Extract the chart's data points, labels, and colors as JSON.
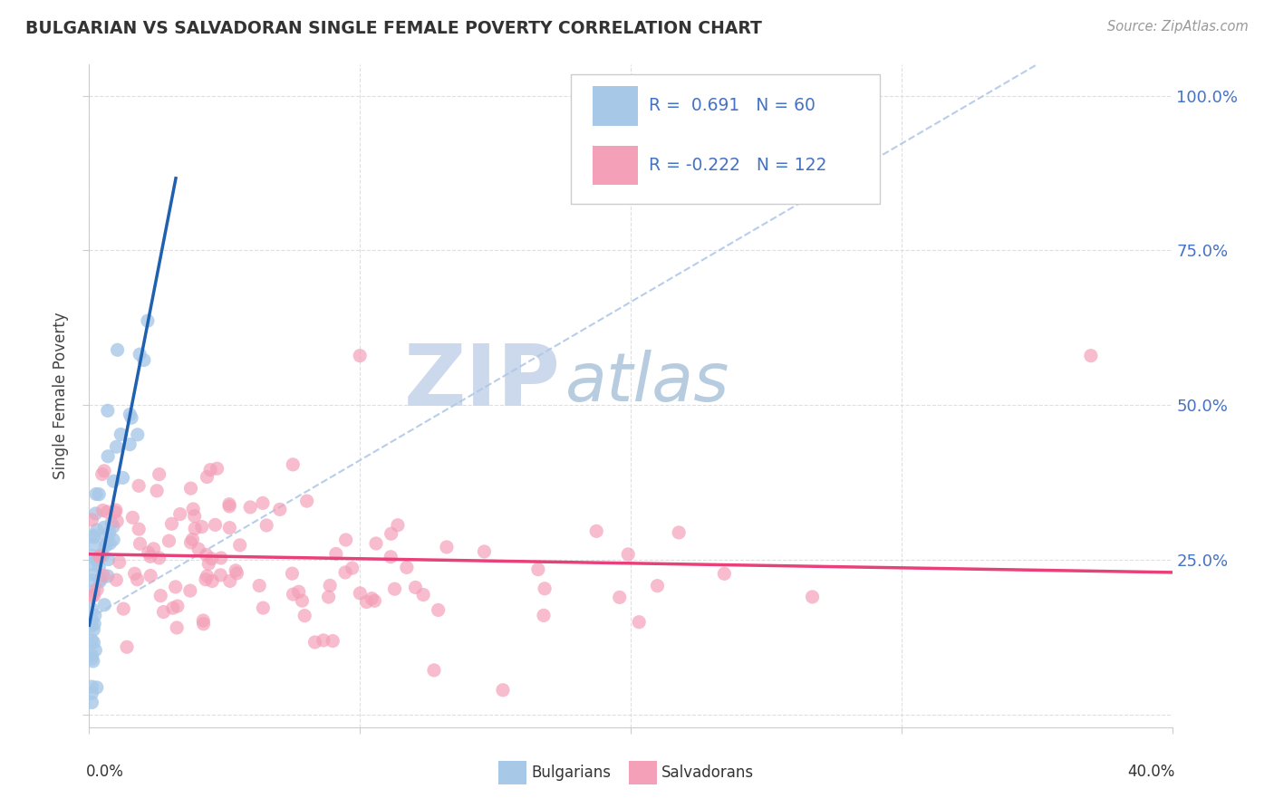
{
  "title": "BULGARIAN VS SALVADORAN SINGLE FEMALE POVERTY CORRELATION CHART",
  "source_text": "Source: ZipAtlas.com",
  "ylabel": "Single Female Poverty",
  "ylabel_right_ticks": [
    "100.0%",
    "75.0%",
    "50.0%",
    "25.0%"
  ],
  "ylabel_right_vals": [
    1.0,
    0.75,
    0.5,
    0.25
  ],
  "xlim": [
    0.0,
    0.4
  ],
  "ylim": [
    -0.02,
    1.05
  ],
  "legend_label1": "Bulgarians",
  "legend_label2": "Salvadorans",
  "blue_color": "#a8c8e8",
  "pink_color": "#f4a0b8",
  "trendline_blue": "#2060b0",
  "trendline_pink": "#e8407a",
  "diag_color": "#b0c8e8",
  "watermark_zip": "ZIP",
  "watermark_atlas": "atlas",
  "watermark_color_zip": "#c8d8ec",
  "watermark_color_atlas": "#b8cce0",
  "background_color": "#ffffff",
  "grid_color": "#d8d8d8",
  "blue_seed": 42,
  "pink_seed": 99,
  "n_bulg": 60,
  "n_salv": 122
}
